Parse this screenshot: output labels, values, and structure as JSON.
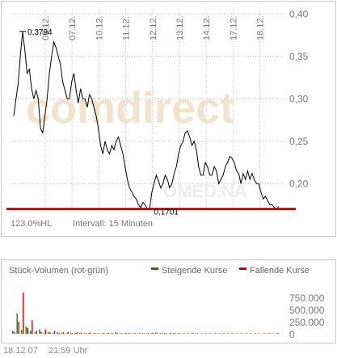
{
  "chart_data": [
    {
      "type": "line",
      "title": "",
      "xlabel": "",
      "ylabel": "",
      "x_ticks": [
        "05.12.",
        "07.12.",
        "10.12.",
        "11.12.",
        "12.12.",
        "13.12.",
        "14.12.",
        "17.12.",
        "18.12."
      ],
      "y_ticks": [
        "0,40",
        "0,35",
        "0,30",
        "0,25",
        "0,20"
      ],
      "ylim": [
        0.165,
        0.405
      ],
      "grid": true,
      "annotations": {
        "high_label": "0,3794",
        "low_label": "0,1701"
      },
      "high": 0.3794,
      "low": 0.1701,
      "reference_line": 0.1701,
      "colors": {
        "line": "#000000",
        "reference": "#d40000",
        "grid": "#bbbbbb"
      },
      "info": {
        "hl": "123,0%HL",
        "interval": "Intervall: 15 Minuten"
      },
      "series": [
        {
          "values": [
            0.28,
            0.3,
            0.318,
            0.352,
            0.379,
            0.357,
            0.33,
            0.335,
            0.312,
            0.3,
            0.31,
            0.3,
            0.265,
            0.26,
            0.28,
            0.3,
            0.33,
            0.35,
            0.367,
            0.36,
            0.35,
            0.34,
            0.32,
            0.31,
            0.3,
            0.3,
            0.32,
            0.33,
            0.31,
            0.295,
            0.312,
            0.3,
            0.3,
            0.29,
            0.305,
            0.3,
            0.29,
            0.28,
            0.265,
            0.245,
            0.235,
            0.25,
            0.24,
            0.235,
            0.245,
            0.24,
            0.25,
            0.255,
            0.245,
            0.235,
            0.22,
            0.205,
            0.195,
            0.19,
            0.185,
            0.182,
            0.175,
            0.172,
            0.178,
            0.175,
            0.17,
            0.17,
            0.19,
            0.2,
            0.21,
            0.203,
            0.195,
            0.2,
            0.21,
            0.205,
            0.195,
            0.2,
            0.212,
            0.22,
            0.235,
            0.245,
            0.25,
            0.26,
            0.262,
            0.255,
            0.245,
            0.25,
            0.24,
            0.22,
            0.21,
            0.21,
            0.225,
            0.22,
            0.21,
            0.21,
            0.22,
            0.215,
            0.2,
            0.205,
            0.21,
            0.22,
            0.225,
            0.232,
            0.23,
            0.225,
            0.215,
            0.212,
            0.2,
            0.212,
            0.205,
            0.215,
            0.205,
            0.212,
            0.205,
            0.2,
            0.2,
            0.19,
            0.182,
            0.185,
            0.18,
            0.175,
            0.175,
            0.172,
            0.17,
            0.173
          ]
        }
      ]
    },
    {
      "type": "bar",
      "title": "Stück-Volumen (rot-grün)",
      "y_ticks": [
        "750.000",
        "500.000",
        "250.000",
        "0"
      ],
      "ylim": [
        0,
        1000000
      ],
      "legend": [
        {
          "name": "Steigende Kurse",
          "color": "#1a7a1a"
        },
        {
          "name": "Fallende Kurse",
          "color": "#cc0000"
        }
      ],
      "series": [
        {
          "name": "Steigende Kurse",
          "values": [
            60000,
            420000,
            80000,
            150000,
            60000,
            30000,
            90000,
            20000,
            40000,
            15000,
            30000,
            20000,
            10000,
            25000,
            15000,
            20000,
            10000,
            12000,
            8000,
            14000,
            10000,
            8000,
            12000,
            30000,
            10000,
            8000,
            15000,
            10000,
            8000,
            12000,
            10000,
            8000,
            25000,
            10000,
            15000,
            8000,
            20000,
            10000,
            8000,
            12000,
            10000,
            8000,
            6000,
            8000,
            10000,
            6000,
            8000,
            12000,
            8000,
            6000,
            8000,
            10000,
            6000,
            8000,
            6000,
            8000,
            10000,
            6000,
            8000,
            6000
          ]
        },
        {
          "name": "Fallende Kurse",
          "values": [
            40000,
            250000,
            850000,
            120000,
            280000,
            60000,
            40000,
            90000,
            30000,
            60000,
            20000,
            30000,
            40000,
            15000,
            30000,
            20000,
            15000,
            25000,
            20000,
            10000,
            15000,
            20000,
            10000,
            15000,
            12000,
            20000,
            10000,
            15000,
            12000,
            10000,
            15000,
            20000,
            10000,
            12000,
            10000,
            15000,
            10000,
            12000,
            10000,
            8000,
            12000,
            10000,
            8000,
            10000,
            6000,
            12000,
            10000,
            8000,
            6000,
            10000,
            8000,
            6000,
            10000,
            8000,
            12000,
            6000,
            8000,
            10000,
            6000,
            12000
          ]
        }
      ]
    }
  ],
  "watermark": {
    "brand": "comdirect",
    "sub": "OMED.NA"
  },
  "footer": {
    "date": "18.12.07",
    "time": "21:59 Uhr"
  }
}
